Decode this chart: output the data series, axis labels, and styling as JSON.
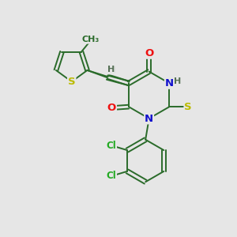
{
  "bg": "#e6e6e6",
  "bc": "#2a6b2a",
  "colors": {
    "O": "#ee1111",
    "N": "#1111cc",
    "S": "#bbbb00",
    "Cl": "#22aa22",
    "H": "#557055",
    "C": "#2a6b2a"
  },
  "fs": 9.5,
  "fss": 8.0,
  "lw": 1.4
}
